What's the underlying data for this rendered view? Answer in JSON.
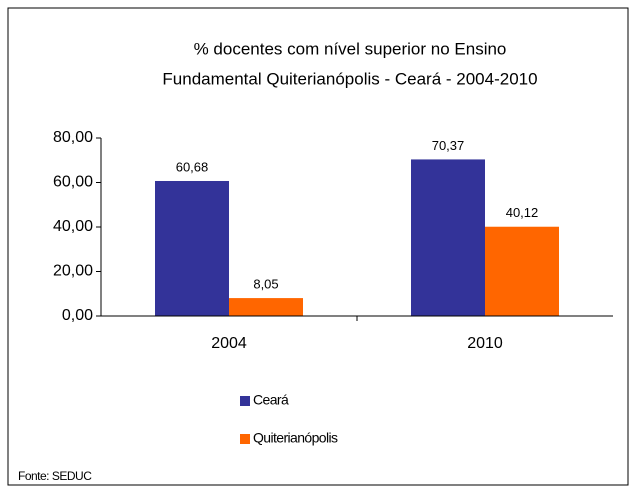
{
  "chart_data": {
    "type": "bar",
    "title": [
      "% docentes com nível  superior no Ensino",
      "Fundamental   Quiterianópolis -  Ceará - 2004-2010"
    ],
    "categories": [
      "2004",
      "2010"
    ],
    "series": [
      {
        "name": "Ceará",
        "color": "#333399",
        "values": [
          60.68,
          70.37
        ],
        "value_labels": [
          "60,68",
          "70,37"
        ]
      },
      {
        "name": "Quiterianópolis",
        "color": "#ff6600",
        "values": [
          8.05,
          40.12
        ],
        "value_labels": [
          "8,05",
          "40,12"
        ]
      }
    ],
    "ylim": [
      0,
      80
    ],
    "yticks": [
      {
        "value": 0,
        "label": "0,00"
      },
      {
        "value": 20,
        "label": "20,00"
      },
      {
        "value": 40,
        "label": "40,00"
      },
      {
        "value": 60,
        "label": "60,00"
      },
      {
        "value": 80,
        "label": "80,00"
      }
    ],
    "legend": "bottom",
    "source": "Fonte: SEDUC"
  }
}
